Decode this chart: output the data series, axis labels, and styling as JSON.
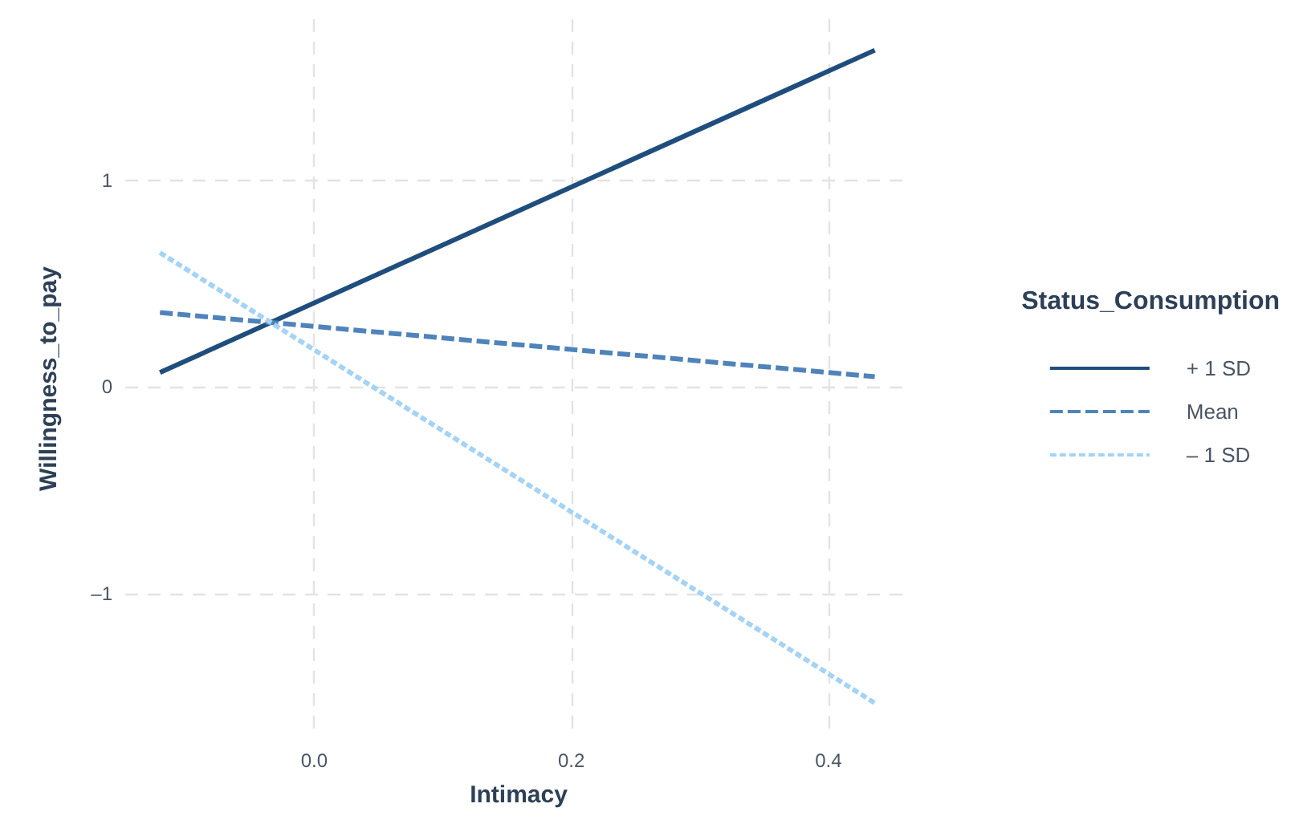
{
  "chart_data": {
    "type": "line",
    "xlabel": "Intimacy",
    "ylabel": "Willingness_to_pay",
    "legend_title": "Status_Consumption",
    "legend": "right",
    "grid": true,
    "marker": "none",
    "xlim": [
      -0.147,
      0.465
    ],
    "x": [
      -0.12,
      0.436
    ],
    "xticks": [
      {
        "value": 0,
        "label": "0.0"
      },
      0.2,
      0.4
    ],
    "ylim": [
      -1.7,
      1.78
    ],
    "yticks": [
      {
        "value": -1,
        "label": "–1"
      },
      0,
      1
    ],
    "series": [
      {
        "name": "+ 1 SD",
        "color": "#1f4e7d",
        "line_style": "solid",
        "values": [
          0.07,
          1.63
        ]
      },
      {
        "name": "Mean",
        "color": "#4f83ba",
        "line_style": "dashed",
        "values": [
          0.36,
          0.05
        ]
      },
      {
        "name": "– 1 SD",
        "color": "#a5d3f5",
        "line_style": "dotted",
        "values": [
          0.65,
          -1.53
        ]
      }
    ]
  }
}
